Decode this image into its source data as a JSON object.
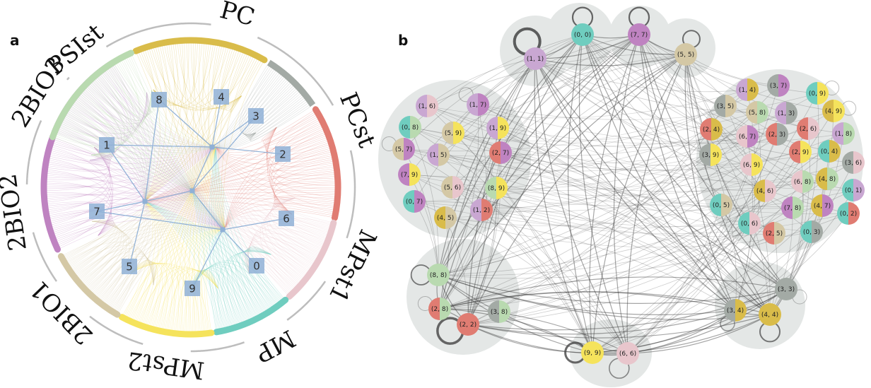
{
  "panels": [
    {
      "label": "a"
    },
    {
      "label": "b"
    }
  ],
  "panel_a": {
    "groups": [
      {
        "name": "PC",
        "color": "#d9bc4a"
      },
      {
        "name": "PCst",
        "color": "#e07c72"
      },
      {
        "name": "MPst1",
        "color": "#e8c6cc"
      },
      {
        "name": "MP",
        "color": "#6fcdbf"
      },
      {
        "name": "MPst2",
        "color": "#f5e35c"
      },
      {
        "name": "2BIO1",
        "color": "#d4c8a5"
      },
      {
        "name": "2BIO2",
        "color": "#bf83c1"
      },
      {
        "name": "2BIO3",
        "color": "#c9a7d2"
      },
      {
        "name": "PSIst",
        "color": "#b9dab0"
      }
    ],
    "clusters": [
      "0",
      "1",
      "2",
      "3",
      "4",
      "5",
      "6",
      "7",
      "8",
      "9"
    ]
  },
  "panel_b": {
    "nodes": [
      {
        "label": "(0, 0)",
        "c1": "#6fcdbf",
        "c2": "#6fcdbf"
      },
      {
        "label": "(7, 7)",
        "c1": "#bf83c1",
        "c2": "#bf83c1"
      },
      {
        "label": "(1, 1)",
        "c1": "#c9a7d2",
        "c2": "#c9a7d2"
      },
      {
        "label": "(5, 5)",
        "c1": "#d4c8a5",
        "c2": "#d4c8a5"
      },
      {
        "label": "(1, 6)",
        "c1": "#c9a7d2",
        "c2": "#e8c6cc"
      },
      {
        "label": "(1, 7)",
        "c1": "#c9a7d2",
        "c2": "#bf83c1"
      },
      {
        "label": "(0, 8)",
        "c1": "#6fcdbf",
        "c2": "#b9dab0"
      },
      {
        "label": "(5, 9)",
        "c1": "#d4c8a5",
        "c2": "#f5e35c"
      },
      {
        "label": "(1, 9)",
        "c1": "#c9a7d2",
        "c2": "#f5e35c"
      },
      {
        "label": "(5, 7)",
        "c1": "#d4c8a5",
        "c2": "#bf83c1"
      },
      {
        "label": "(1, 5)",
        "c1": "#c9a7d2",
        "c2": "#d4c8a5"
      },
      {
        "label": "(2, 7)",
        "c1": "#e07c72",
        "c2": "#bf83c1"
      },
      {
        "label": "(7, 9)",
        "c1": "#bf83c1",
        "c2": "#f5e35c"
      },
      {
        "label": "(5, 6)",
        "c1": "#d4c8a5",
        "c2": "#e8c6cc"
      },
      {
        "label": "(8, 9)",
        "c1": "#b9dab0",
        "c2": "#f5e35c"
      },
      {
        "label": "(0, 7)",
        "c1": "#6fcdbf",
        "c2": "#bf83c1"
      },
      {
        "label": "(1, 2)",
        "c1": "#c9a7d2",
        "c2": "#e07c72"
      },
      {
        "label": "(4, 5)",
        "c1": "#d9bc4a",
        "c2": "#d4c8a5"
      },
      {
        "label": "(1, 4)",
        "c1": "#c9a7d2",
        "c2": "#d9bc4a"
      },
      {
        "label": "(3, 7)",
        "c1": "#a3aaa5",
        "c2": "#bf83c1"
      },
      {
        "label": "(0, 9)",
        "c1": "#6fcdbf",
        "c2": "#f5e35c"
      },
      {
        "label": "(3, 5)",
        "c1": "#a3aaa5",
        "c2": "#d4c8a5"
      },
      {
        "label": "(5, 8)",
        "c1": "#d4c8a5",
        "c2": "#b9dab0"
      },
      {
        "label": "(1, 3)",
        "c1": "#c9a7d2",
        "c2": "#a3aaa5"
      },
      {
        "label": "(4, 9)",
        "c1": "#d9bc4a",
        "c2": "#f5e35c"
      },
      {
        "label": "(2, 4)",
        "c1": "#e07c72",
        "c2": "#d9bc4a"
      },
      {
        "label": "(6, 7)",
        "c1": "#e8c6cc",
        "c2": "#bf83c1"
      },
      {
        "label": "(2, 3)",
        "c1": "#e07c72",
        "c2": "#a3aaa5"
      },
      {
        "label": "(2, 6)",
        "c1": "#e07c72",
        "c2": "#e8c6cc"
      },
      {
        "label": "(1, 8)",
        "c1": "#c9a7d2",
        "c2": "#b9dab0"
      },
      {
        "label": "(3, 9)",
        "c1": "#a3aaa5",
        "c2": "#f5e35c"
      },
      {
        "label": "(6, 9)",
        "c1": "#e8c6cc",
        "c2": "#f5e35c"
      },
      {
        "label": "(2, 9)",
        "c1": "#e07c72",
        "c2": "#f5e35c"
      },
      {
        "label": "(0, 4)",
        "c1": "#6fcdbf",
        "c2": "#d9bc4a"
      },
      {
        "label": "(3, 6)",
        "c1": "#a3aaa5",
        "c2": "#e8c6cc"
      },
      {
        "label": "(4, 6)",
        "c1": "#d9bc4a",
        "c2": "#e8c6cc"
      },
      {
        "label": "(6, 8)",
        "c1": "#e8c6cc",
        "c2": "#b9dab0"
      },
      {
        "label": "(4, 8)",
        "c1": "#d9bc4a",
        "c2": "#b9dab0"
      },
      {
        "label": "(0, 1)",
        "c1": "#6fcdbf",
        "c2": "#c9a7d2"
      },
      {
        "label": "(0, 5)",
        "c1": "#6fcdbf",
        "c2": "#d4c8a5"
      },
      {
        "label": "(4, 7)",
        "c1": "#d9bc4a",
        "c2": "#bf83c1"
      },
      {
        "label": "(7, 8)",
        "c1": "#bf83c1",
        "c2": "#b9dab0"
      },
      {
        "label": "(0, 2)",
        "c1": "#6fcdbf",
        "c2": "#e07c72"
      },
      {
        "label": "(0, 6)",
        "c1": "#6fcdbf",
        "c2": "#e8c6cc"
      },
      {
        "label": "(0, 3)",
        "c1": "#6fcdbf",
        "c2": "#a3aaa5"
      },
      {
        "label": "(2, 5)",
        "c1": "#e07c72",
        "c2": "#d4c8a5"
      },
      {
        "label": "(8, 8)",
        "c1": "#b9dab0",
        "c2": "#b9dab0"
      },
      {
        "label": "(2, 8)",
        "c1": "#e07c72",
        "c2": "#b9dab0"
      },
      {
        "label": "(3, 8)",
        "c1": "#a3aaa5",
        "c2": "#b9dab0"
      },
      {
        "label": "(2, 2)",
        "c1": "#e07c72",
        "c2": "#e07c72"
      },
      {
        "label": "(9, 9)",
        "c1": "#f5e35c",
        "c2": "#f5e35c"
      },
      {
        "label": "(6, 6)",
        "c1": "#e8c6cc",
        "c2": "#e8c6cc"
      },
      {
        "label": "(3, 3)",
        "c1": "#a3aaa5",
        "c2": "#a3aaa5"
      },
      {
        "label": "(3, 4)",
        "c1": "#a3aaa5",
        "c2": "#d9bc4a"
      },
      {
        "label": "(4, 4)",
        "c1": "#d9bc4a",
        "c2": "#d9bc4a"
      }
    ]
  }
}
